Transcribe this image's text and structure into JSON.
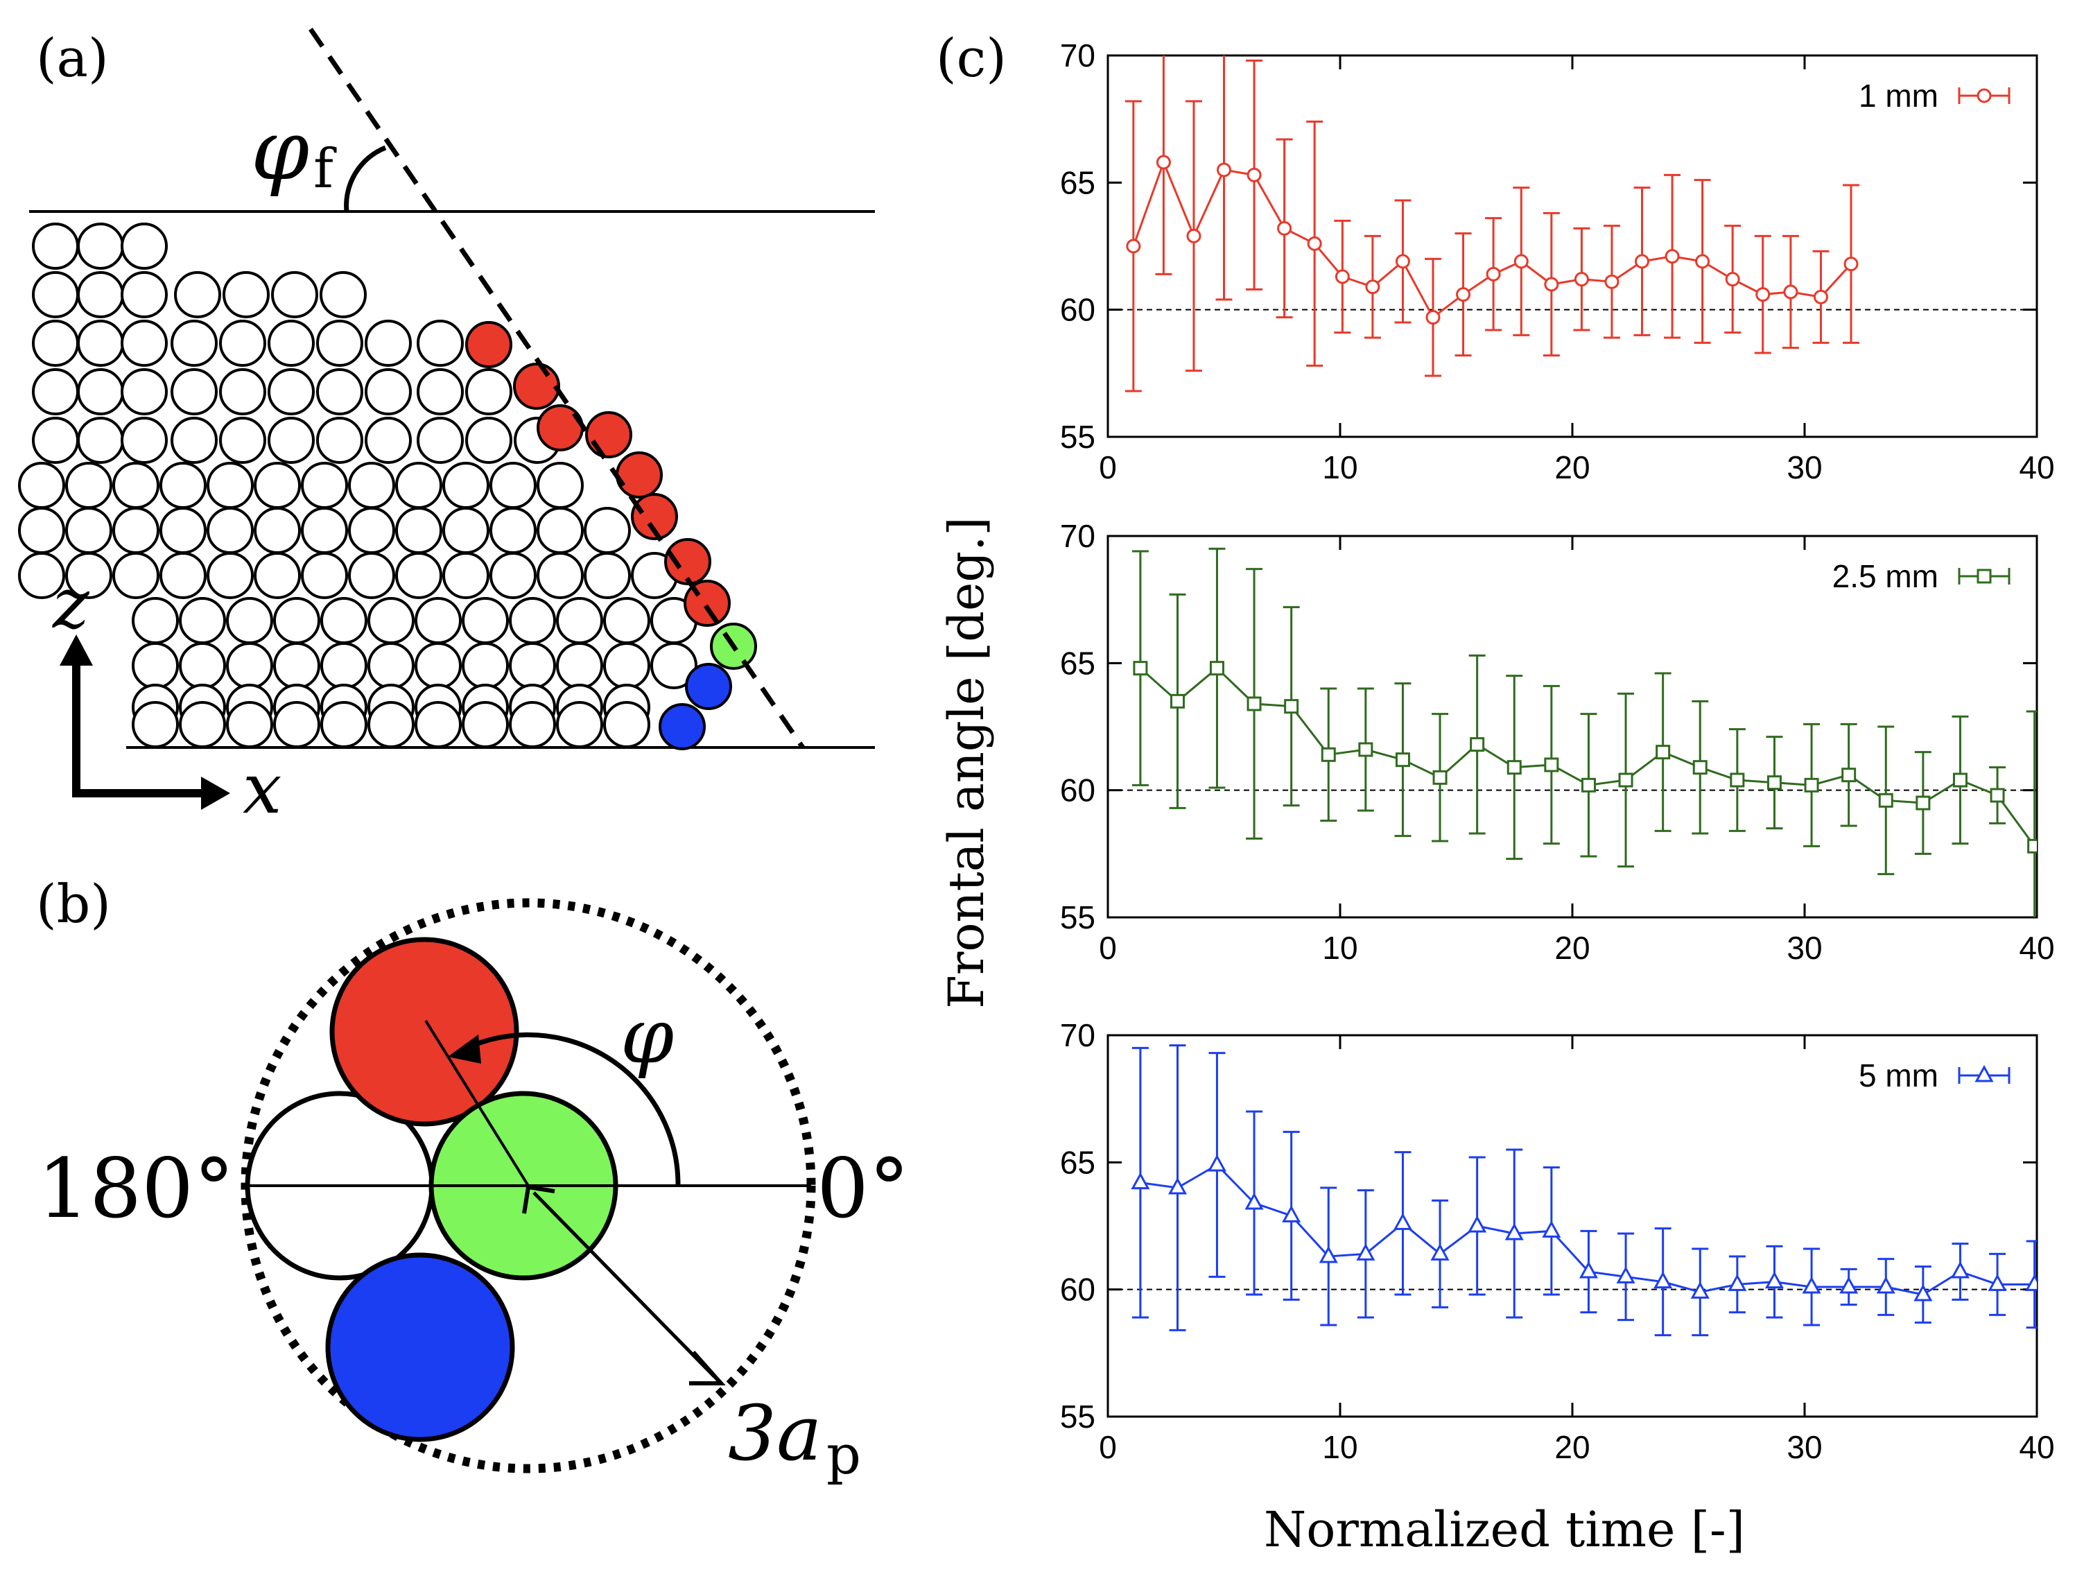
{
  "panel_labels": {
    "a": "(a)",
    "b": "(b)",
    "c": "(c)"
  },
  "panel_a": {
    "angle_symbol": "φ",
    "angle_subscript": "f",
    "axis_z": "z",
    "axis_x": "x",
    "colors": {
      "front": "#e8392a",
      "reference": "#7ef55a",
      "base": "#1b3ef2",
      "bulk": "#ffffff"
    }
  },
  "panel_b": {
    "angle_symbol": "φ",
    "label_180": "180°",
    "label_0": "0°",
    "radius_label": "3a",
    "radius_subscript": "p"
  },
  "chart_data": [
    {
      "type": "line",
      "legend": "1 mm",
      "color": "#e8392a",
      "marker": "circle",
      "ylim": [
        55,
        70
      ],
      "xlim": [
        0,
        40
      ],
      "reference_line": 60,
      "x": [
        1.1,
        2.4,
        3.7,
        5.0,
        6.3,
        7.6,
        8.9,
        10.1,
        11.4,
        12.7,
        14.0,
        15.3,
        16.6,
        17.8,
        19.1,
        20.4,
        21.7,
        23.0,
        24.3,
        25.6,
        26.9,
        28.2,
        29.4,
        30.7,
        32.0
      ],
      "values": [
        62.5,
        65.8,
        62.9,
        65.5,
        65.3,
        63.2,
        62.6,
        61.3,
        60.9,
        61.9,
        59.7,
        60.6,
        61.4,
        61.9,
        61.0,
        61.2,
        61.1,
        61.9,
        62.1,
        61.9,
        61.2,
        60.6,
        60.7,
        60.5,
        61.8
      ],
      "errors": [
        5.7,
        4.4,
        5.3,
        5.1,
        4.5,
        3.5,
        4.8,
        2.2,
        2.0,
        2.4,
        2.3,
        2.4,
        2.2,
        2.9,
        2.8,
        2.0,
        2.2,
        2.9,
        3.2,
        3.2,
        2.1,
        2.3,
        2.2,
        1.8,
        3.1
      ],
      "yticks": [
        "55",
        "60",
        "65",
        "70"
      ],
      "xticks": [
        "0",
        "10",
        "20",
        "30",
        "40"
      ]
    },
    {
      "type": "line",
      "legend": "2.5 mm",
      "color": "#2f6b1e",
      "marker": "square",
      "ylim": [
        55,
        70
      ],
      "xlim": [
        0,
        40
      ],
      "reference_line": 60,
      "x": [
        1.4,
        3.0,
        4.7,
        6.3,
        7.9,
        9.5,
        11.1,
        12.7,
        14.3,
        15.9,
        17.5,
        19.1,
        20.7,
        22.3,
        23.9,
        25.5,
        27.1,
        28.7,
        30.3,
        31.9,
        33.5,
        35.1,
        36.7,
        38.3,
        39.9
      ],
      "values": [
        64.8,
        63.5,
        64.8,
        63.4,
        63.3,
        61.4,
        61.6,
        61.2,
        60.5,
        61.8,
        60.9,
        61.0,
        60.2,
        60.4,
        61.5,
        60.9,
        60.4,
        60.3,
        60.2,
        60.6,
        59.6,
        59.5,
        60.4,
        59.8,
        57.8
      ],
      "errors": [
        4.6,
        4.2,
        4.7,
        5.3,
        3.9,
        2.6,
        2.4,
        3.0,
        2.5,
        3.5,
        3.6,
        3.1,
        2.8,
        3.4,
        3.1,
        2.6,
        2.0,
        1.8,
        2.4,
        2.0,
        2.9,
        2.0,
        2.5,
        1.1,
        5.3
      ],
      "yticks": [
        "55",
        "60",
        "65",
        "70"
      ],
      "xticks": [
        "0",
        "10",
        "20",
        "30",
        "40"
      ]
    },
    {
      "type": "line",
      "legend": "5 mm",
      "color": "#1b3ef2",
      "marker": "triangle",
      "ylim": [
        55,
        70
      ],
      "xlim": [
        0,
        40
      ],
      "reference_line": 60,
      "x": [
        1.4,
        3.0,
        4.7,
        6.3,
        7.9,
        9.5,
        11.1,
        12.7,
        14.3,
        15.9,
        17.5,
        19.1,
        20.7,
        22.3,
        23.9,
        25.5,
        27.1,
        28.7,
        30.3,
        31.9,
        33.5,
        35.1,
        36.7,
        38.3,
        39.9
      ],
      "values": [
        64.2,
        64.0,
        64.9,
        63.4,
        62.9,
        61.3,
        61.4,
        62.6,
        61.4,
        62.5,
        62.2,
        62.3,
        60.7,
        60.5,
        60.3,
        59.9,
        60.2,
        60.3,
        60.1,
        60.1,
        60.1,
        59.8,
        60.7,
        60.2,
        60.2
      ],
      "errors": [
        5.3,
        5.6,
        4.4,
        3.6,
        3.3,
        2.7,
        2.5,
        2.8,
        2.1,
        2.7,
        3.3,
        2.5,
        1.6,
        1.7,
        2.1,
        1.7,
        1.1,
        1.4,
        1.5,
        0.7,
        1.1,
        1.1,
        1.1,
        1.2,
        1.7
      ],
      "yticks": [
        "55",
        "60",
        "65",
        "70"
      ],
      "xticks": [
        "0",
        "10",
        "20",
        "30",
        "40"
      ]
    }
  ],
  "axes": {
    "ylabel": "Frontal angle [deg.]",
    "xlabel": "Normalized time [-]"
  }
}
